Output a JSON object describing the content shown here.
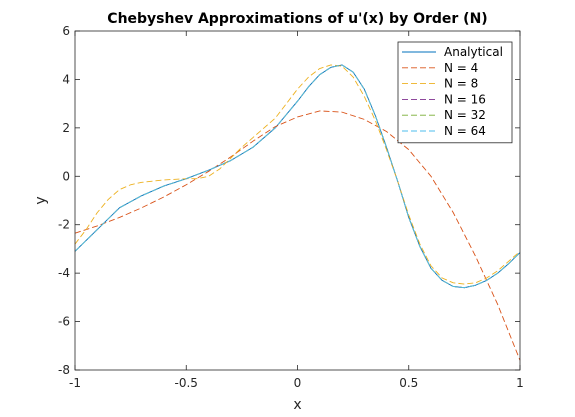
{
  "chart_data": {
    "type": "line",
    "title": "Chebyshev Approximations of u'(x) by Order (N)",
    "xlabel": "x",
    "ylabel": "y",
    "xlim": [
      -1,
      1
    ],
    "ylim": [
      -8,
      6
    ],
    "xticks": [
      -1,
      -0.5,
      0,
      0.5,
      1
    ],
    "xtick_labels": [
      "-1",
      "-0.5",
      "0",
      "0.5",
      "1"
    ],
    "yticks": [
      -8,
      -6,
      -4,
      -2,
      0,
      2,
      4,
      6
    ],
    "ytick_labels": [
      "-8",
      "-6",
      "-4",
      "-2",
      "0",
      "2",
      "4",
      "6"
    ],
    "grid": false,
    "legend_position": "top-right",
    "series": [
      {
        "name": "Analytical",
        "color": "#0072BD",
        "style": "solid",
        "x": [
          -1,
          -0.9,
          -0.8,
          -0.7,
          -0.6,
          -0.5,
          -0.4,
          -0.3,
          -0.2,
          -0.1,
          0,
          0.05,
          0.1,
          0.15,
          0.2,
          0.25,
          0.3,
          0.35,
          0.4,
          0.45,
          0.5,
          0.55,
          0.6,
          0.65,
          0.7,
          0.75,
          0.8,
          0.85,
          0.9,
          0.95,
          1
        ],
        "y": [
          -3.1,
          -2.2,
          -1.3,
          -0.8,
          -0.4,
          -0.1,
          0.25,
          0.65,
          1.2,
          2.0,
          3.1,
          3.7,
          4.2,
          4.5,
          4.6,
          4.3,
          3.6,
          2.5,
          1.2,
          -0.2,
          -1.7,
          -2.9,
          -3.8,
          -4.3,
          -4.55,
          -4.6,
          -4.5,
          -4.3,
          -4.0,
          -3.6,
          -3.15
        ]
      },
      {
        "name": "N = 4",
        "color": "#D95319",
        "style": "dashed",
        "x": [
          -1,
          -0.9,
          -0.8,
          -0.7,
          -0.6,
          -0.5,
          -0.4,
          -0.3,
          -0.2,
          -0.1,
          0,
          0.1,
          0.2,
          0.3,
          0.4,
          0.5,
          0.6,
          0.7,
          0.8,
          0.9,
          1
        ],
        "y": [
          -2.35,
          -2.05,
          -1.7,
          -1.3,
          -0.85,
          -0.35,
          0.2,
          0.8,
          1.45,
          2.05,
          2.45,
          2.7,
          2.65,
          2.35,
          1.85,
          1.1,
          0.0,
          -1.5,
          -3.3,
          -5.3,
          -7.6
        ]
      },
      {
        "name": "N = 8",
        "color": "#EDB120",
        "style": "dashed",
        "x": [
          -1,
          -0.95,
          -0.9,
          -0.85,
          -0.8,
          -0.75,
          -0.7,
          -0.6,
          -0.5,
          -0.45,
          -0.4,
          -0.35,
          -0.3,
          -0.25,
          -0.2,
          -0.1,
          0,
          0.05,
          0.1,
          0.15,
          0.2,
          0.25,
          0.3,
          0.35,
          0.4,
          0.45,
          0.5,
          0.55,
          0.6,
          0.65,
          0.7,
          0.75,
          0.8,
          0.85,
          0.9,
          0.95,
          1
        ],
        "y": [
          -2.8,
          -2.2,
          -1.5,
          -0.95,
          -0.55,
          -0.35,
          -0.25,
          -0.15,
          -0.1,
          -0.1,
          0.0,
          0.3,
          0.75,
          1.2,
          1.6,
          2.4,
          3.6,
          4.1,
          4.45,
          4.6,
          4.55,
          4.1,
          3.3,
          2.3,
          1.1,
          -0.2,
          -1.6,
          -2.8,
          -3.7,
          -4.2,
          -4.4,
          -4.45,
          -4.4,
          -4.2,
          -3.9,
          -3.5,
          -3.1
        ]
      },
      {
        "name": "N = 16",
        "color": "#7E2F8E",
        "style": "dashed",
        "x": [
          -1,
          -0.9,
          -0.8,
          -0.7,
          -0.6,
          -0.5,
          -0.4,
          -0.3,
          -0.2,
          -0.1,
          0,
          0.05,
          0.1,
          0.15,
          0.2,
          0.25,
          0.3,
          0.35,
          0.4,
          0.45,
          0.5,
          0.55,
          0.6,
          0.65,
          0.7,
          0.75,
          0.8,
          0.85,
          0.9,
          0.95,
          1
        ],
        "y": [
          -3.1,
          -2.2,
          -1.3,
          -0.8,
          -0.4,
          -0.1,
          0.25,
          0.65,
          1.2,
          2.0,
          3.1,
          3.7,
          4.2,
          4.5,
          4.6,
          4.3,
          3.6,
          2.5,
          1.2,
          -0.2,
          -1.7,
          -2.9,
          -3.8,
          -4.3,
          -4.55,
          -4.6,
          -4.5,
          -4.3,
          -4.0,
          -3.6,
          -3.15
        ]
      },
      {
        "name": "N = 32",
        "color": "#77AC30",
        "style": "dashed",
        "x": [
          -1,
          -0.9,
          -0.8,
          -0.7,
          -0.6,
          -0.5,
          -0.4,
          -0.3,
          -0.2,
          -0.1,
          0,
          0.05,
          0.1,
          0.15,
          0.2,
          0.25,
          0.3,
          0.35,
          0.4,
          0.45,
          0.5,
          0.55,
          0.6,
          0.65,
          0.7,
          0.75,
          0.8,
          0.85,
          0.9,
          0.95,
          1
        ],
        "y": [
          -3.1,
          -2.2,
          -1.3,
          -0.8,
          -0.4,
          -0.1,
          0.25,
          0.65,
          1.2,
          2.0,
          3.1,
          3.7,
          4.2,
          4.5,
          4.6,
          4.3,
          3.6,
          2.5,
          1.2,
          -0.2,
          -1.7,
          -2.9,
          -3.8,
          -4.3,
          -4.55,
          -4.6,
          -4.5,
          -4.3,
          -4.0,
          -3.6,
          -3.15
        ]
      },
      {
        "name": "N = 64",
        "color": "#4DBEEE",
        "style": "dashed",
        "x": [
          -1,
          -0.9,
          -0.8,
          -0.7,
          -0.6,
          -0.5,
          -0.4,
          -0.3,
          -0.2,
          -0.1,
          0,
          0.05,
          0.1,
          0.15,
          0.2,
          0.25,
          0.3,
          0.35,
          0.4,
          0.45,
          0.5,
          0.55,
          0.6,
          0.65,
          0.7,
          0.75,
          0.8,
          0.85,
          0.9,
          0.95,
          1
        ],
        "y": [
          -3.1,
          -2.2,
          -1.3,
          -0.8,
          -0.4,
          -0.1,
          0.25,
          0.65,
          1.2,
          2.0,
          3.1,
          3.7,
          4.2,
          4.5,
          4.6,
          4.3,
          3.6,
          2.5,
          1.2,
          -0.2,
          -1.7,
          -2.9,
          -3.8,
          -4.3,
          -4.55,
          -4.6,
          -4.5,
          -4.3,
          -4.0,
          -3.6,
          -3.15
        ]
      }
    ]
  }
}
